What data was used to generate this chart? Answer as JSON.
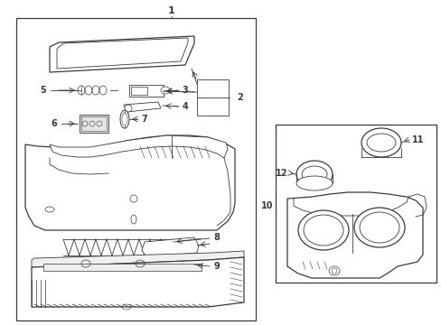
{
  "bg_color": "#ffffff",
  "line_color": "#3a3a3a",
  "fig_width": 4.89,
  "fig_height": 3.6,
  "dpi": 100,
  "xmin": 0,
  "xmax": 489,
  "ymin": 0,
  "ymax": 360
}
